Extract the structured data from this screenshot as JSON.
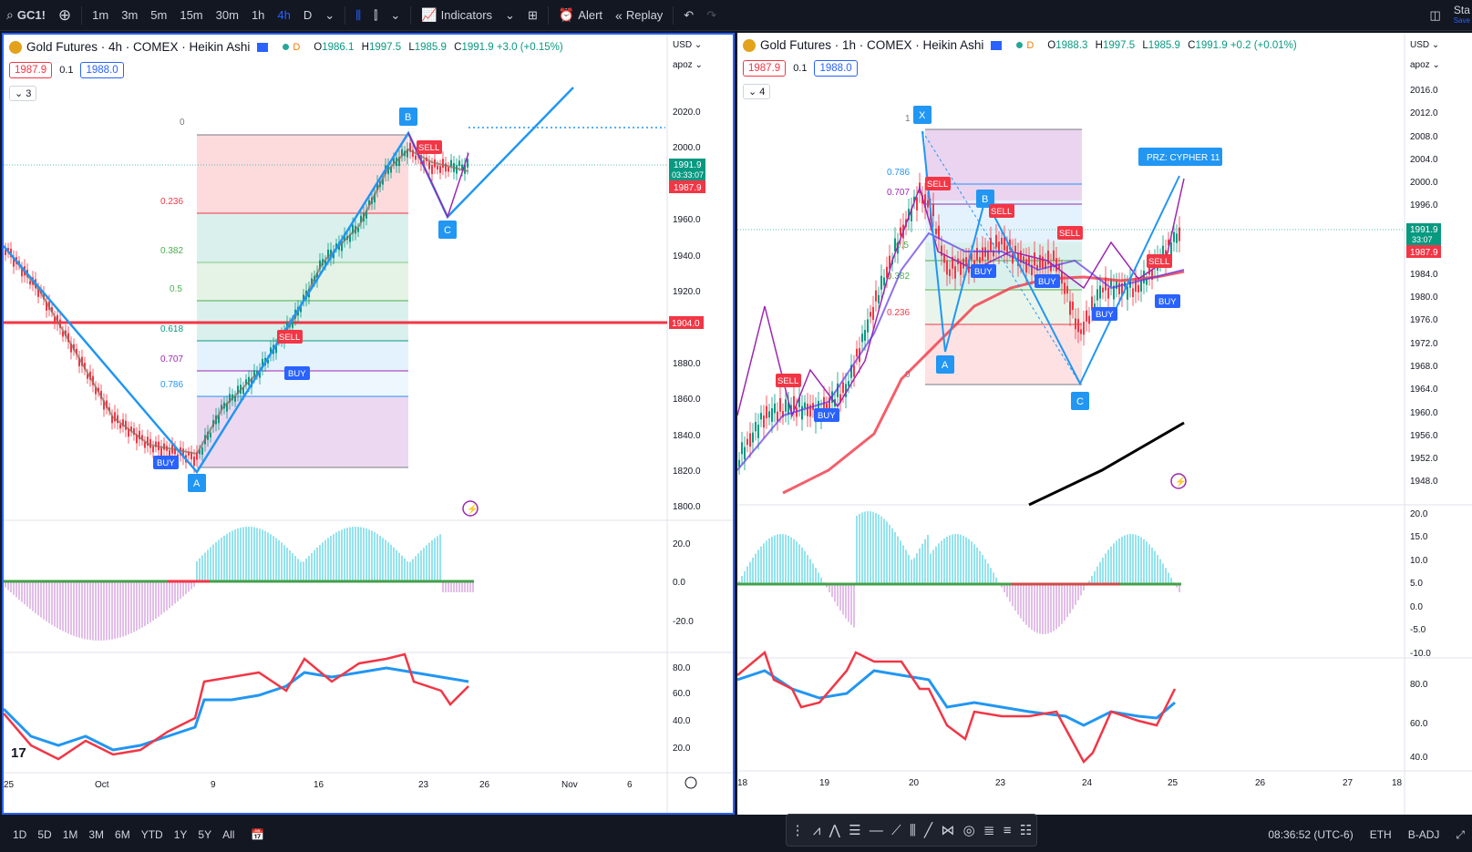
{
  "toolbar": {
    "symbol": "GC1!",
    "intervals": [
      "1m",
      "3m",
      "5m",
      "15m",
      "30m",
      "1h",
      "4h",
      "D"
    ],
    "active_interval": "4h",
    "indicators_label": "Indicators",
    "alert_label": "Alert",
    "replay_label": "Replay",
    "right_label": "Sta",
    "right_sub": "Save"
  },
  "left_chart": {
    "title": "Gold Futures · 4h · COMEX · Heikin Ashi",
    "d_badge": "D",
    "ohlc": {
      "o_label": "O",
      "o": "1986.1",
      "h_label": "H",
      "h": "1997.5",
      "l_label": "L",
      "l": "1985.9",
      "c_label": "C",
      "c": "1991.9",
      "chg": "+3.0 (+0.15%)"
    },
    "bid": "1987.9",
    "spread": "0.1",
    "ask": "1988.0",
    "collapse": "3",
    "currency": "USD",
    "scale": "apoz",
    "price_ticks": [
      "2020.0",
      "2000.0",
      "1980.0",
      "1960.0",
      "1940.0",
      "1920.0",
      "1880.0",
      "1860.0",
      "1840.0",
      "1820.0",
      "1800.0"
    ],
    "price_label_1": "1991.9",
    "price_label_1_sub": "03:33:07",
    "price_label_2": "1987.9",
    "hline_label": "1904.0",
    "fib_levels": [
      "0",
      "0.236",
      "0.382",
      "0.5",
      "0.618",
      "0.707",
      "0.786"
    ],
    "points": [
      "A",
      "B",
      "C"
    ],
    "signals": [
      "BUY",
      "SELL",
      "BUY",
      "SELL",
      "BUY"
    ],
    "osc_ticks": [
      "20.0",
      "0.0",
      "-20.0"
    ],
    "rsi_ticks": [
      "80.0",
      "60.0",
      "40.0",
      "20.0"
    ],
    "time_ticks": [
      "25",
      "Oct",
      "9",
      "16",
      "23",
      "26",
      "Nov",
      "6"
    ]
  },
  "right_chart": {
    "title": "Gold Futures · 1h · COMEX · Heikin Ashi",
    "d_badge": "D",
    "ohlc": {
      "o_label": "O",
      "o": "1988.3",
      "h_label": "H",
      "h": "1997.5",
      "l_label": "L",
      "l": "1985.9",
      "c_label": "C",
      "c": "1991.9",
      "chg": "+0.2 (+0.01%)"
    },
    "bid": "1987.9",
    "spread": "0.1",
    "ask": "1988.0",
    "collapse": "4",
    "currency": "USD",
    "scale": "apoz",
    "price_ticks": [
      "2016.0",
      "2012.0",
      "2008.0",
      "2004.0",
      "2000.0",
      "1996.0",
      "1984.0",
      "1980.0",
      "1976.0",
      "1972.0",
      "1968.0",
      "1964.0",
      "1960.0",
      "1956.0",
      "1952.0",
      "1948.0"
    ],
    "price_label_1": "1991.9",
    "price_label_1_sub": "33:07",
    "price_label_2": "1987.9",
    "fib_levels": [
      "1",
      "0.786",
      "0.707",
      "0.5",
      "0.382",
      "0.236",
      "0"
    ],
    "points": [
      "X",
      "A",
      "B",
      "C"
    ],
    "prz_label": "PRZ: CYPHER 11",
    "signals": [
      "SELL",
      "BUY",
      "SELL",
      "SELL",
      "BUY",
      "BUY",
      "SELL",
      "BUY",
      "BUY",
      "SELL"
    ],
    "osc_ticks": [
      "20.0",
      "15.0",
      "10.0",
      "5.0",
      "0.0",
      "-5.0",
      "-10.0"
    ],
    "rsi_ticks": [
      "80.0",
      "60.0",
      "40.0"
    ],
    "time_ticks": [
      "18",
      "19",
      "20",
      "23",
      "24",
      "25",
      "26",
      "27",
      "18"
    ]
  },
  "bottombar": {
    "ranges": [
      "1D",
      "5D",
      "1M",
      "3M",
      "6M",
      "YTD",
      "1Y",
      "5Y",
      "All"
    ],
    "time": "08:36:52 (UTC-6)",
    "session": "ETH",
    "adj": "B-ADJ"
  },
  "colors": {
    "bull": "#089981",
    "bear": "#f23645",
    "blue": "#2196f3",
    "purple": "#9c27b0",
    "accent": "#2962ff"
  }
}
